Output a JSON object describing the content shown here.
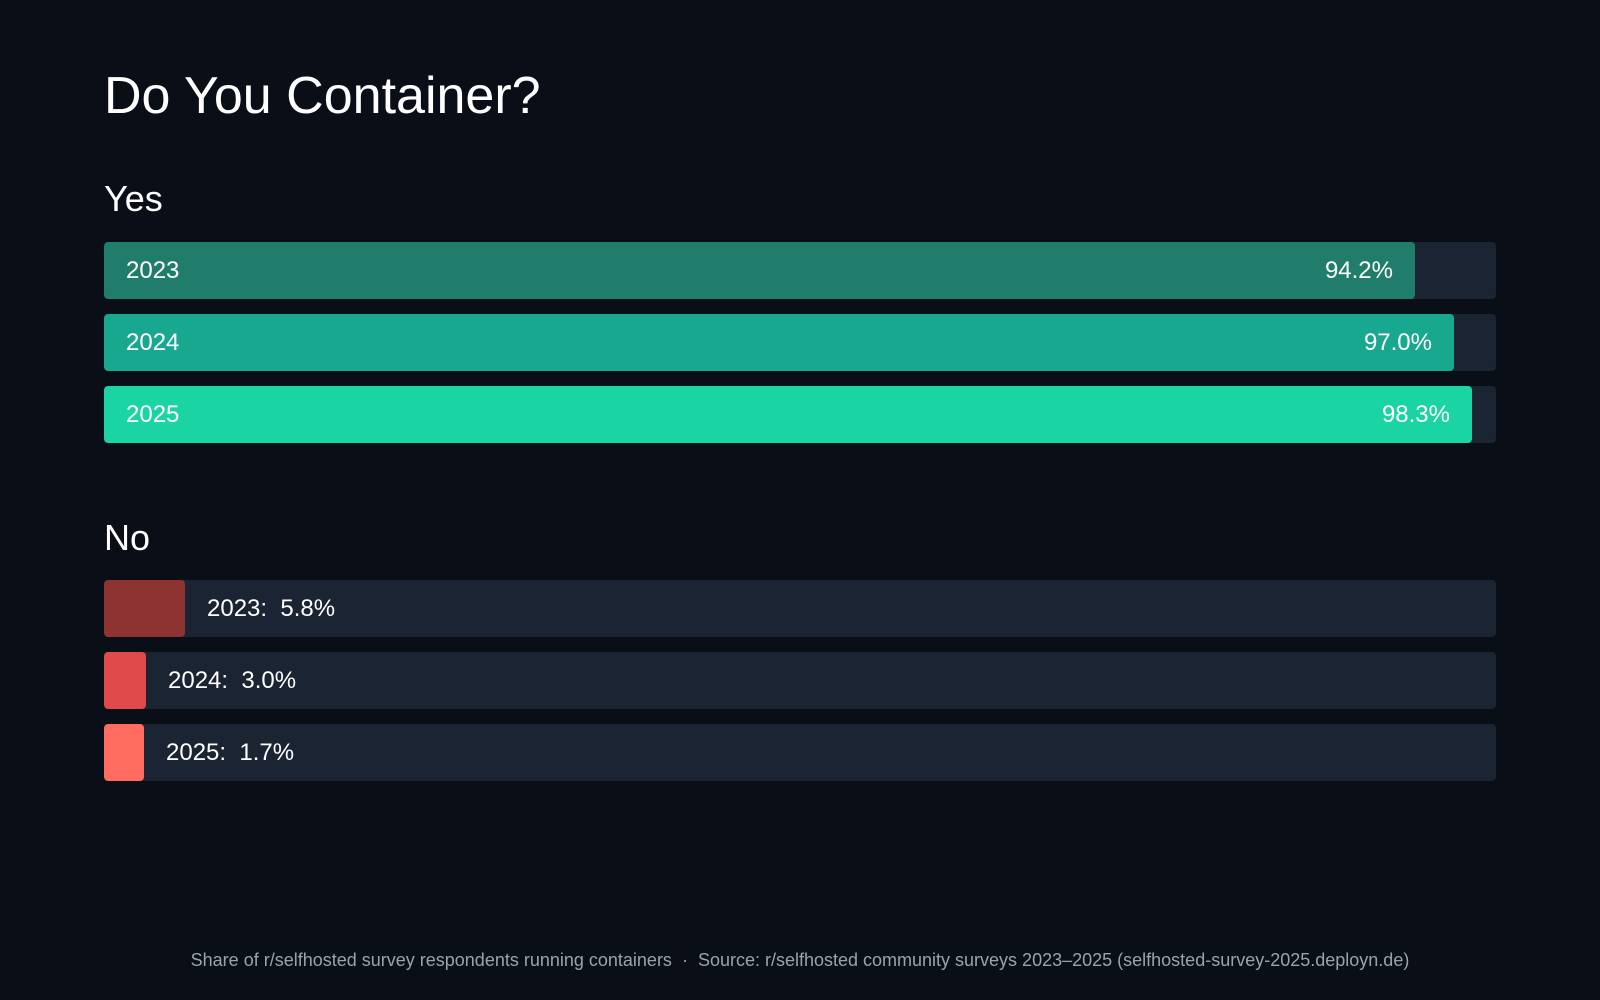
{
  "colors": {
    "background": "#0a0f17",
    "track": "#1a2432",
    "yes": [
      "#217d6b",
      "#17a88f",
      "#1bd4a3"
    ],
    "no": [
      "#8e3232",
      "#e04a4a",
      "#ff6b5e"
    ]
  },
  "chart_data": {
    "type": "bar",
    "orientation": "horizontal",
    "title": "Do You Container?",
    "xlim": [
      0,
      100
    ],
    "unit": "%",
    "groups": [
      {
        "name": "Yes",
        "categories": [
          "2023",
          "2024",
          "2025"
        ],
        "values": [
          94.2,
          97.0,
          98.3
        ],
        "labels": [
          "94.2%",
          "97.0%",
          "98.3%"
        ]
      },
      {
        "name": "No",
        "categories": [
          "2023",
          "2024",
          "2025"
        ],
        "values": [
          5.8,
          3.0,
          1.7
        ],
        "labels": [
          "5.8%",
          "3.0%",
          "1.7%"
        ]
      }
    ]
  },
  "footer": {
    "description": "Share of r/selfhosted survey respondents running containers",
    "separator": "·",
    "source": "Source: r/selfhosted community surveys 2023–2025 (selfhosted-survey-2025.deployn.de)"
  }
}
